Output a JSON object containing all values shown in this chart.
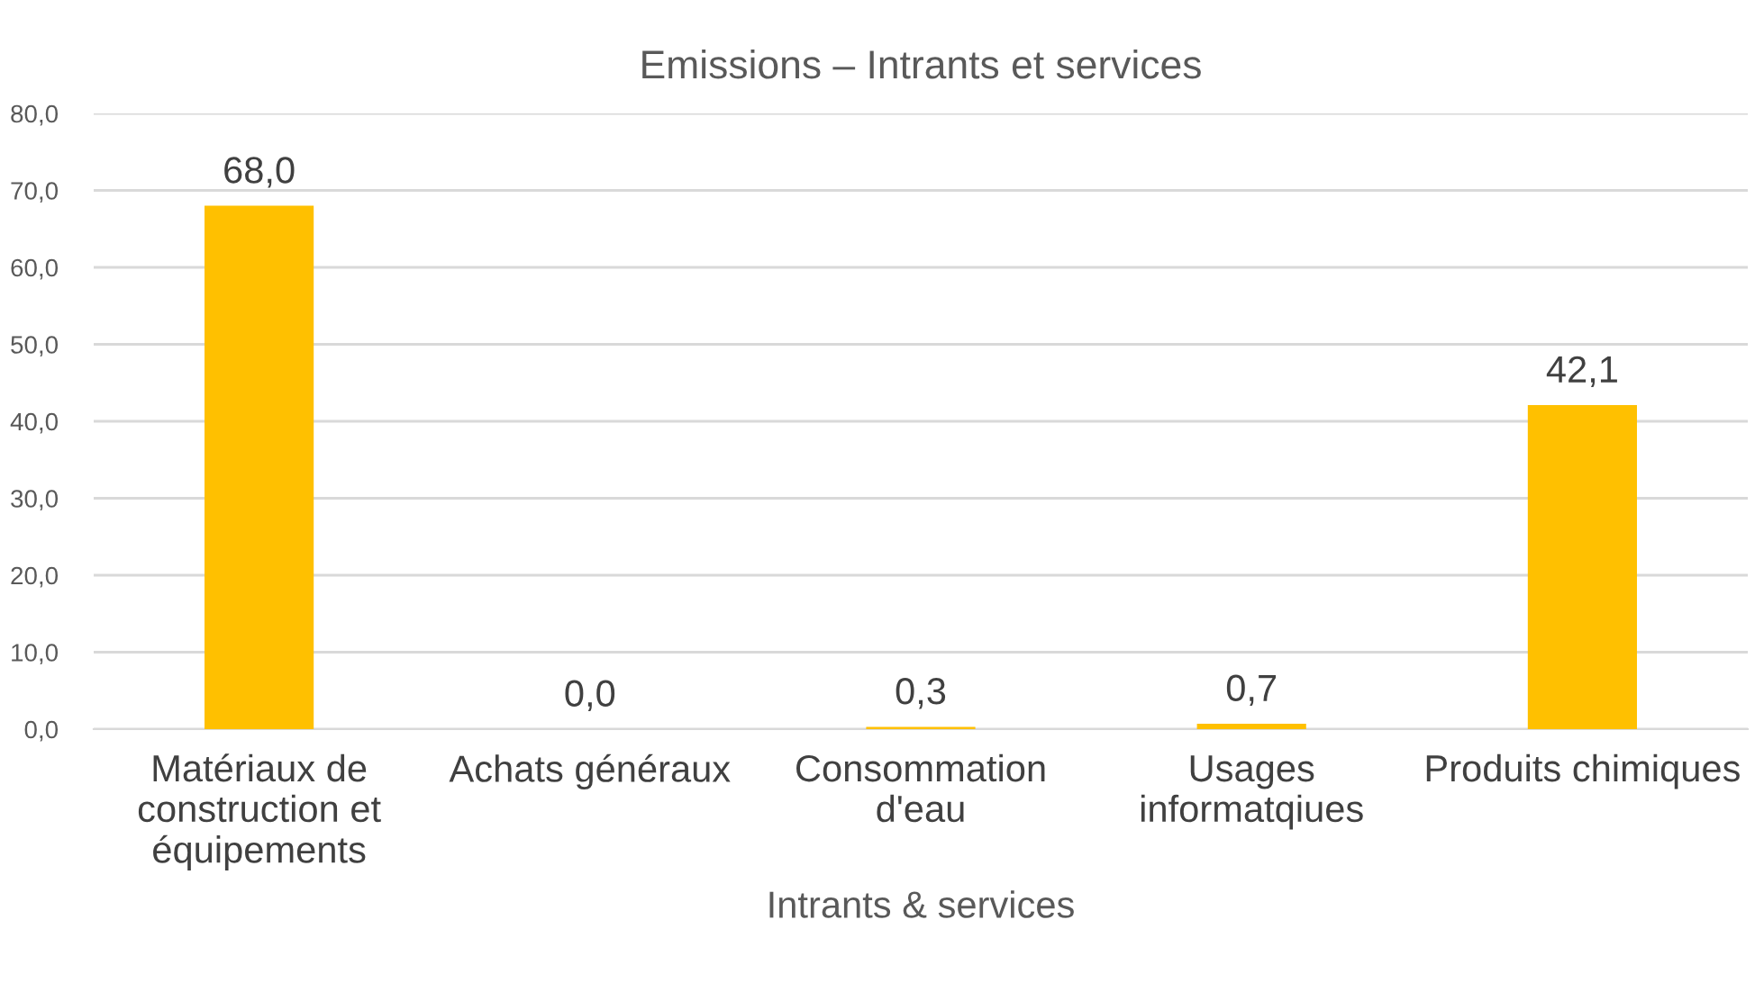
{
  "chart_data": {
    "type": "bar",
    "title": "Emissions – Intrants et services",
    "xlabel": "Intrants & services",
    "categories": [
      "Matériaux de\nconstruction et\néquipements",
      "Achats généraux",
      "Consommation\nd'eau",
      "Usages\ninformatqiues",
      "Produits chimiques"
    ],
    "values": [
      68.0,
      0.0,
      0.3,
      0.7,
      42.1
    ],
    "value_labels": [
      "68,0",
      "0,0",
      "0,3",
      "0,7",
      "42,1"
    ],
    "color": "#ffc000",
    "ylim": [
      0,
      80
    ],
    "yticks": [
      {
        "value": 0,
        "label": "0,0"
      },
      {
        "value": 10,
        "label": "10,0"
      },
      {
        "value": 20,
        "label": "20,0"
      },
      {
        "value": 30,
        "label": "30,0"
      },
      {
        "value": 40,
        "label": "40,0"
      },
      {
        "value": 50,
        "label": "50,0"
      },
      {
        "value": 60,
        "label": "60,0"
      },
      {
        "value": 70,
        "label": "70,0"
      },
      {
        "value": 80,
        "label": "80,0"
      }
    ],
    "grid": "y"
  }
}
